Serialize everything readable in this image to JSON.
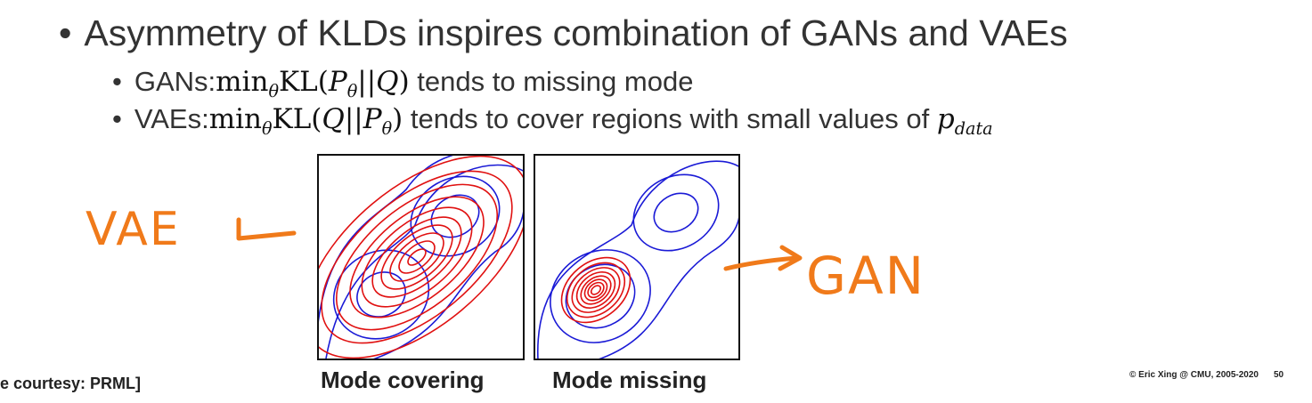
{
  "slide": {
    "bullet_main": "Asymmetry of KLDs inspires combination of GANs and VAEs",
    "gans": {
      "label": "GANs: ",
      "math_min": "min",
      "math_sub": "θ",
      "math_expr": "KL(",
      "p": "P",
      "psub": "θ",
      "sep": "||",
      "q": "Q",
      "close": ")",
      "text": " tends to missing mode"
    },
    "vaes": {
      "label": "VAEs: ",
      "math_min": "min",
      "math_sub": "θ",
      "math_expr": "KL(",
      "q": "Q",
      "sep": "||",
      "p": "P",
      "psub": "θ",
      "close": ")",
      "text": " tends to cover regions with small values of ",
      "pdata": "p",
      "pdata_sub": "data"
    }
  },
  "figures": [
    {
      "caption": "Mode covering"
    },
    {
      "caption": "Mode missing"
    }
  ],
  "annotations": {
    "vae": "VAE",
    "gan": "GAN"
  },
  "footer": {
    "courtesy": "e courtesy: PRML]",
    "copyright": "© Eric Xing @ CMU, 2005-2020",
    "page": "50"
  },
  "colors": {
    "blue": "#1a1ad6",
    "red": "#e01010",
    "orange": "#f07a1a"
  }
}
